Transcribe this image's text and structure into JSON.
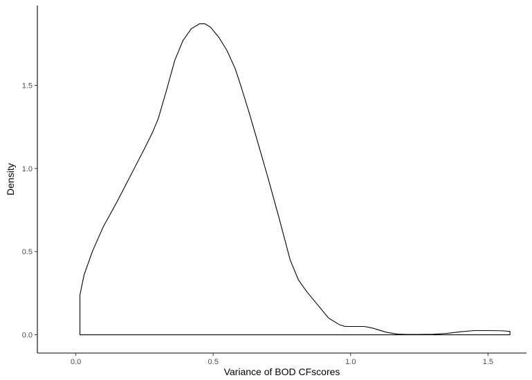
{
  "chart_data": {
    "type": "area",
    "title": "",
    "xlabel": "Variance of BOD CFscores",
    "ylabel": "Density",
    "xlim": [
      -0.14,
      1.64
    ],
    "ylim": [
      -0.11,
      1.98
    ],
    "x_ticks": [
      {
        "value": 0.0,
        "label": "0.0"
      },
      {
        "value": 0.5,
        "label": "0.5"
      },
      {
        "value": 1.0,
        "label": "1.0"
      },
      {
        "value": 1.5,
        "label": "1.5"
      }
    ],
    "y_ticks": [
      {
        "value": 0.0,
        "label": "0.0"
      },
      {
        "value": 0.5,
        "label": "0.5"
      },
      {
        "value": 1.0,
        "label": "1.0"
      },
      {
        "value": 1.5,
        "label": "1.5"
      }
    ],
    "grid": false,
    "legend": "none",
    "fill": "none",
    "line_color": "#000000",
    "series": [
      {
        "x": [
          0.015,
          0.015,
          0.03,
          0.06,
          0.1,
          0.15,
          0.2,
          0.25,
          0.28,
          0.3,
          0.33,
          0.36,
          0.39,
          0.42,
          0.45,
          0.47,
          0.49,
          0.52,
          0.55,
          0.58,
          0.6,
          0.63,
          0.66,
          0.7,
          0.74,
          0.78,
          0.81,
          0.84,
          0.88,
          0.92,
          0.96,
          0.98,
          1.0,
          1.02,
          1.05,
          1.08,
          1.1,
          1.13,
          1.17,
          1.2,
          1.25,
          1.3,
          1.35,
          1.4,
          1.45,
          1.5,
          1.55,
          1.58,
          1.58,
          0.015
        ],
        "y": [
          0.0,
          0.24,
          0.36,
          0.5,
          0.65,
          0.8,
          0.96,
          1.12,
          1.22,
          1.3,
          1.47,
          1.65,
          1.77,
          1.84,
          1.87,
          1.87,
          1.85,
          1.79,
          1.71,
          1.6,
          1.5,
          1.34,
          1.17,
          0.94,
          0.7,
          0.45,
          0.33,
          0.26,
          0.18,
          0.1,
          0.06,
          0.05,
          0.05,
          0.05,
          0.05,
          0.04,
          0.03,
          0.015,
          0.004,
          0.002,
          0.002,
          0.003,
          0.008,
          0.018,
          0.025,
          0.025,
          0.024,
          0.02,
          0.0,
          0.0
        ]
      }
    ]
  }
}
